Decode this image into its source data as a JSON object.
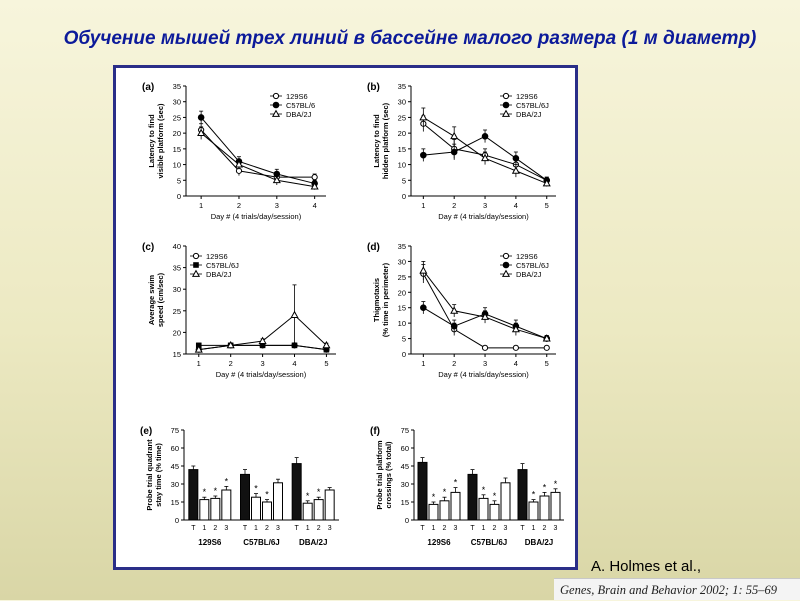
{
  "slide": {
    "title": "Обучение мышей трех линий в бассейне малого размера (1 м диаметр)",
    "author": "A. Holmes  et al.,",
    "citation": "Genes, Brain and Behavior 2002; 1: 55–69"
  },
  "colors": {
    "title": "#0c1a9a",
    "frame": "#2a2e88",
    "bar_trained": "#111111",
    "bar_other": "#ffffff"
  },
  "chart_data": [
    {
      "id": "a",
      "type": "line",
      "panel_label": "(a)",
      "ylabel_lines": [
        "Latency to find",
        "visible platform (sec)"
      ],
      "xlabel": "Day # (4 trials/day/session)",
      "x": [
        1,
        2,
        3,
        4
      ],
      "ylim": [
        0,
        35
      ],
      "yticks": [
        0,
        5,
        10,
        15,
        20,
        25,
        30,
        35
      ],
      "legend_position": "top-right",
      "series": [
        {
          "name": "129S6",
          "marker": "open-circle",
          "values": [
            21,
            8,
            6,
            6
          ],
          "err": [
            2,
            1.5,
            1.5,
            1
          ]
        },
        {
          "name": "C57BL/6",
          "marker": "filled-circle",
          "values": [
            25,
            11,
            7,
            4
          ],
          "err": [
            2,
            1.5,
            1.5,
            1
          ]
        },
        {
          "name": "DBA/2J",
          "marker": "open-triangle",
          "values": [
            20,
            10,
            5,
            3
          ],
          "err": [
            2,
            1.5,
            1.5,
            1
          ]
        }
      ]
    },
    {
      "id": "b",
      "type": "line",
      "panel_label": "(b)",
      "ylabel_lines": [
        "Latency to find",
        "hidden platform (sec)"
      ],
      "xlabel": "Day # (4 trials/day/session)",
      "x": [
        1,
        2,
        3,
        4,
        5
      ],
      "ylim": [
        0,
        35
      ],
      "yticks": [
        0,
        5,
        10,
        15,
        20,
        25,
        30,
        35
      ],
      "legend_position": "top-right",
      "series": [
        {
          "name": "129S6",
          "marker": "open-circle",
          "values": [
            23,
            15,
            13,
            10,
            5
          ],
          "err": [
            2.5,
            3,
            2,
            2,
            1
          ]
        },
        {
          "name": "C57BL/6J",
          "marker": "filled-circle",
          "values": [
            13,
            14,
            19,
            12,
            5
          ],
          "err": [
            2,
            2.5,
            2,
            2,
            1
          ]
        },
        {
          "name": "DBA/2J",
          "marker": "open-triangle",
          "values": [
            25,
            19,
            12,
            8,
            4
          ],
          "err": [
            3,
            3,
            2,
            2,
            1
          ]
        }
      ]
    },
    {
      "id": "c",
      "type": "line",
      "panel_label": "(c)",
      "ylabel_lines": [
        "Average swim",
        "speed (cm/sec)"
      ],
      "xlabel": "Day # (4 trials/day/session)",
      "x": [
        1,
        2,
        3,
        4,
        5
      ],
      "ylim": [
        15,
        40
      ],
      "yticks": [
        15,
        20,
        25,
        30,
        35,
        40
      ],
      "legend_position": "top-left",
      "series": [
        {
          "name": "129S6",
          "marker": "open-circle",
          "values": [
            16,
            17,
            17,
            17,
            16
          ],
          "err": [
            0.5,
            0.5,
            0.5,
            0.5,
            0.5
          ]
        },
        {
          "name": "C57BL/6J",
          "marker": "filled-square",
          "values": [
            17,
            17,
            17,
            17,
            16
          ],
          "err": [
            0.5,
            0.5,
            0.5,
            0.5,
            0.5
          ]
        },
        {
          "name": "DBA/2J",
          "marker": "open-triangle",
          "values": [
            16,
            17,
            18,
            24,
            17
          ],
          "err": [
            0.5,
            0.5,
            0.5,
            7,
            0.5
          ]
        }
      ]
    },
    {
      "id": "d",
      "type": "line",
      "panel_label": "(d)",
      "ylabel_lines": [
        "Thigmotaxis",
        "(% time in perimeter)"
      ],
      "xlabel": "Day # (4 trials/day/session)",
      "x": [
        1,
        2,
        3,
        4,
        5
      ],
      "ylim": [
        0,
        35
      ],
      "yticks": [
        0,
        5,
        10,
        15,
        20,
        25,
        30,
        35
      ],
      "legend_position": "top-right",
      "series": [
        {
          "name": "129S6",
          "marker": "open-circle",
          "values": [
            26,
            8,
            2,
            2,
            2
          ],
          "err": [
            3,
            2,
            0.5,
            0.5,
            0.5
          ]
        },
        {
          "name": "C57BL/6J",
          "marker": "filled-circle",
          "values": [
            15,
            9,
            13,
            9,
            5
          ],
          "err": [
            2,
            2,
            2,
            2,
            1
          ]
        },
        {
          "name": "DBA/2J",
          "marker": "open-triangle",
          "values": [
            27,
            14,
            12,
            8,
            5
          ],
          "err": [
            3,
            2,
            2,
            2,
            1
          ]
        }
      ]
    },
    {
      "id": "e",
      "type": "bar",
      "panel_label": "(e)",
      "ylabel_lines": [
        "Probe trial quadrant",
        "stay time (% time)"
      ],
      "ylim": [
        0,
        75
      ],
      "yticks": [
        0,
        15,
        30,
        45,
        60,
        75
      ],
      "bar_labels": [
        "T",
        "1",
        "2",
        "3"
      ],
      "groups": [
        {
          "name": "129S6",
          "values": [
            42,
            17,
            18,
            25
          ],
          "err": [
            3,
            2,
            2,
            3
          ],
          "stars": [
            "",
            "*",
            "*",
            "*"
          ]
        },
        {
          "name": "C57BL/6J",
          "values": [
            38,
            19,
            15,
            31
          ],
          "err": [
            4,
            3,
            2,
            3
          ],
          "stars": [
            "",
            "*",
            "*",
            ""
          ]
        },
        {
          "name": "DBA/2J",
          "values": [
            47,
            14,
            17,
            25
          ],
          "err": [
            5,
            2,
            2,
            2
          ],
          "stars": [
            "",
            "*",
            "*",
            ""
          ]
        }
      ]
    },
    {
      "id": "f",
      "type": "bar",
      "panel_label": "(f)",
      "ylabel_lines": [
        "Probe trial platform",
        "crossings (% total)"
      ],
      "ylim": [
        0,
        75
      ],
      "yticks": [
        0,
        15,
        30,
        45,
        60,
        75
      ],
      "bar_labels": [
        "T",
        "1",
        "2",
        "3"
      ],
      "groups": [
        {
          "name": "129S6",
          "values": [
            48,
            13,
            16,
            23
          ],
          "err": [
            4,
            2,
            3,
            4
          ],
          "stars": [
            "",
            "*",
            "*",
            "*"
          ]
        },
        {
          "name": "C57BL/6J",
          "values": [
            38,
            18,
            13,
            31
          ],
          "err": [
            4,
            3,
            3,
            4
          ],
          "stars": [
            "",
            "*",
            "*",
            ""
          ]
        },
        {
          "name": "DBA/2J",
          "values": [
            42,
            15,
            20,
            23
          ],
          "err": [
            5,
            2,
            3,
            3
          ],
          "stars": [
            "",
            "*",
            "*",
            "*"
          ]
        }
      ]
    }
  ]
}
